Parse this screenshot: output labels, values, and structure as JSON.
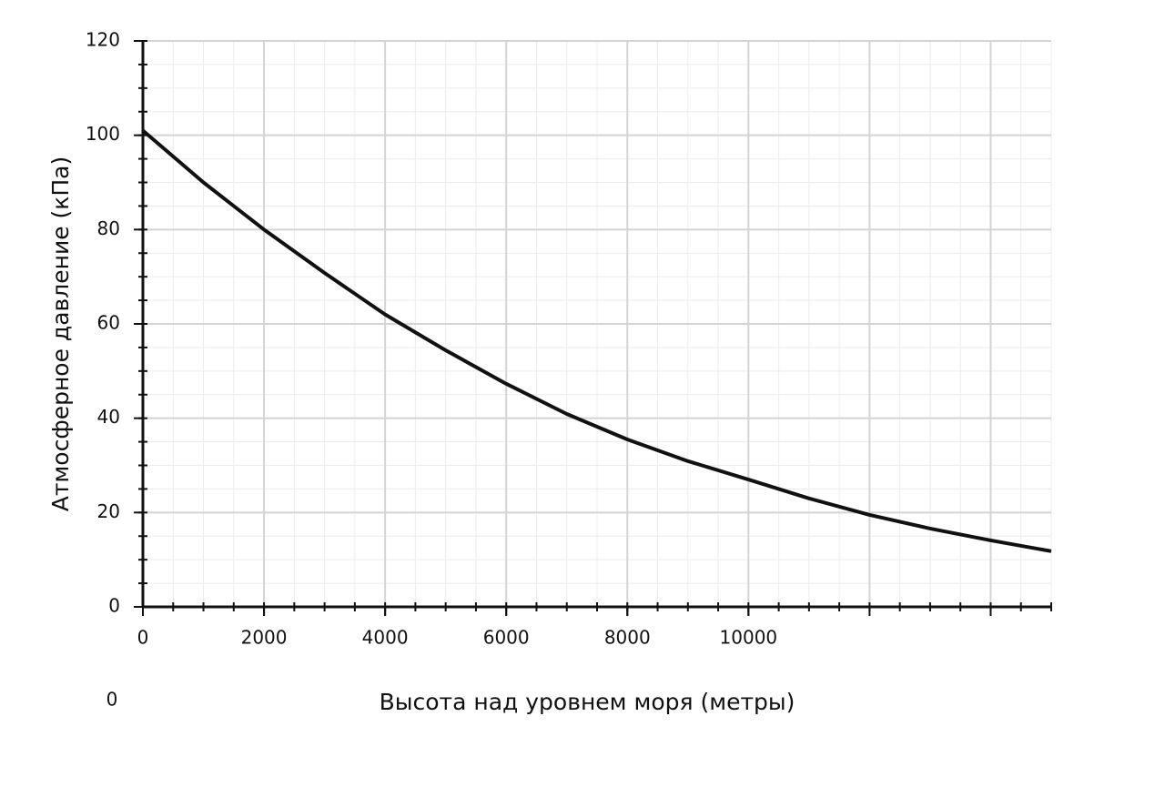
{
  "chart_data": {
    "type": "line",
    "xlabel": "Высота над уровнем моря (метры)",
    "ylabel": "Атмосферное давление (кПа)",
    "footnote": "0",
    "x": [
      0,
      1000,
      2000,
      3000,
      4000,
      5000,
      6000,
      7000,
      8000,
      9000,
      10000,
      11000,
      12000,
      13000,
      14000,
      15000
    ],
    "series": [
      {
        "color": "#111111",
        "values": [
          101,
          90,
          80,
          70.8,
          62,
          54.4,
          47.3,
          40.9,
          35.5,
          30.9,
          27,
          23,
          19.5,
          16.6,
          14.1,
          11.8
        ]
      }
    ],
    "xlim": [
      0,
      15000
    ],
    "ylim": [
      0,
      120
    ],
    "xticks": [
      0,
      2000,
      4000,
      6000,
      8000,
      10000
    ],
    "yticks": [
      0,
      20,
      40,
      60,
      80,
      100,
      120
    ],
    "xgrid_step": 2000,
    "xminor_step": 500,
    "ygrid_step": 20,
    "yminor_step": 5,
    "grid": true
  }
}
